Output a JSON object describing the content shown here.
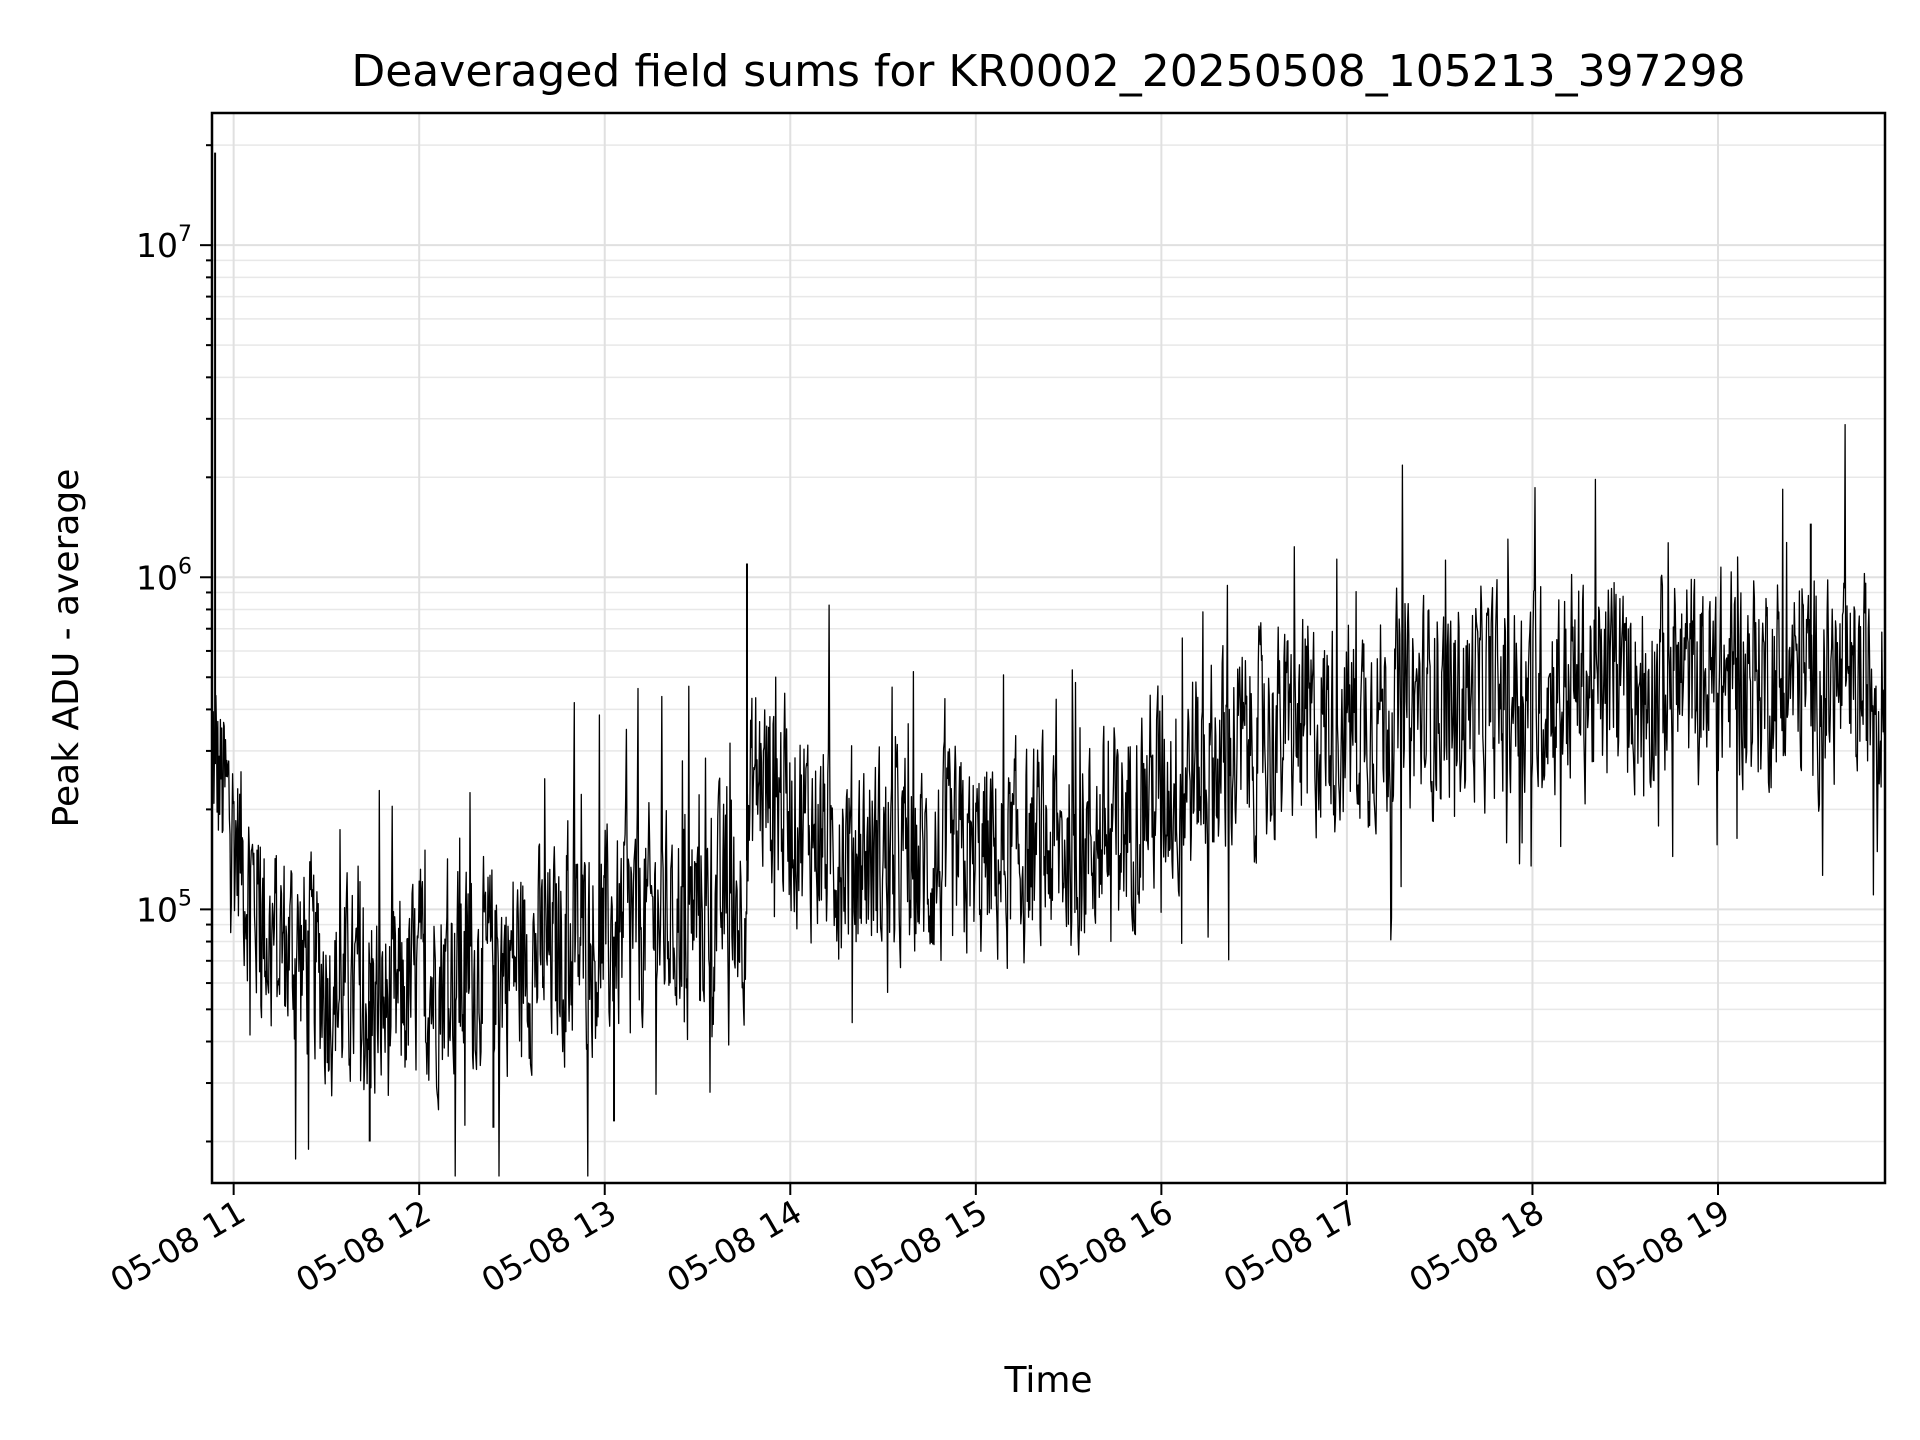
{
  "chart_data": {
    "type": "line",
    "title": "Deaveraged field sums for KR0002_20250508_105213_397298",
    "xlabel": "Time",
    "ylabel": "Peak ADU - average",
    "yscale": "log",
    "xlim": [
      "2025-05-08 10:53",
      "2025-05-08 19:54"
    ],
    "ylim": [
      15000,
      25000000
    ],
    "x_ticks": [
      "2025-05-08 11:00",
      "2025-05-08 12:00",
      "2025-05-08 13:00",
      "2025-05-08 14:00",
      "2025-05-08 15:00",
      "2025-05-08 16:00",
      "2025-05-08 17:00",
      "2025-05-08 18:00",
      "2025-05-08 19:00"
    ],
    "x_tick_labels": [
      "05-08 11",
      "05-08 12",
      "05-08 13",
      "05-08 14",
      "05-08 15",
      "05-08 16",
      "05-08 17",
      "05-08 18",
      "05-08 19"
    ],
    "y_ticks": [
      {
        "base": "10",
        "exp": "5",
        "value": 100000
      },
      {
        "base": "10",
        "exp": "6",
        "value": 1000000
      },
      {
        "base": "10",
        "exp": "7",
        "value": 10000000
      }
    ],
    "grid": true,
    "series": [
      {
        "color": "#000000",
        "x": [
          "2025-05-08 10:53",
          "2025-05-08 10:55",
          "2025-05-08 10:58",
          "2025-05-08 11:05",
          "2025-05-08 11:12",
          "2025-05-08 11:20",
          "2025-05-08 11:30",
          "2025-05-08 11:40",
          "2025-05-08 11:50",
          "2025-05-08 12:00",
          "2025-05-08 12:15",
          "2025-05-08 12:30",
          "2025-05-08 12:45",
          "2025-05-08 13:00",
          "2025-05-08 13:15",
          "2025-05-08 13:30",
          "2025-05-08 13:45",
          "2025-05-08 13:48",
          "2025-05-08 13:55",
          "2025-05-08 14:05",
          "2025-05-08 14:20",
          "2025-05-08 14:35",
          "2025-05-08 14:50",
          "2025-05-08 15:05",
          "2025-05-08 15:20",
          "2025-05-08 15:35",
          "2025-05-08 15:45",
          "2025-05-08 15:55",
          "2025-05-08 16:10",
          "2025-05-08 16:25",
          "2025-05-08 16:40",
          "2025-05-08 16:55",
          "2025-05-08 17:10",
          "2025-05-08 17:25",
          "2025-05-08 17:40",
          "2025-05-08 17:55",
          "2025-05-08 18:10",
          "2025-05-08 18:25",
          "2025-05-08 18:40",
          "2025-05-08 18:55",
          "2025-05-08 19:10",
          "2025-05-08 19:25",
          "2025-05-08 19:40",
          "2025-05-08 19:54"
        ],
        "y": [
          300000,
          250000,
          200000,
          120000,
          80000,
          75000,
          60000,
          55000,
          50000,
          60000,
          65000,
          70000,
          75000,
          80000,
          95000,
          100000,
          105000,
          250000,
          230000,
          180000,
          150000,
          140000,
          135000,
          140000,
          150000,
          160000,
          170000,
          220000,
          260000,
          300000,
          340000,
          370000,
          390000,
          410000,
          430000,
          450000,
          470000,
          480000,
          490000,
          500000,
          510000,
          500000,
          460000,
          480000
        ],
        "spikes_max": [
          {
            "x": "2025-05-08 10:54",
            "y": 19000000
          },
          {
            "x": "2025-05-08 13:46",
            "y": 1100000
          },
          {
            "x": "2025-05-08 19:30",
            "y": 1450000
          }
        ],
        "spikes_min": [
          {
            "x": "2025-05-08 11:44",
            "y": 20000
          },
          {
            "x": "2025-05-08 12:24",
            "y": 22000
          },
          {
            "x": "2025-05-08 13:03",
            "y": 23000
          }
        ]
      }
    ]
  }
}
